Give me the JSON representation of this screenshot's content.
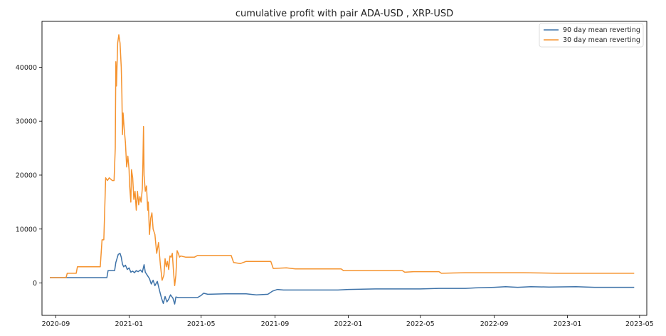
{
  "chart_data": {
    "type": "line",
    "title": "cumulative profit with pair ADA-USD , XRP-USD",
    "xlabel": "",
    "ylabel": "",
    "xlim": [
      "2020-08-09",
      "2023-05-13"
    ],
    "ylim": [
      -6000,
      48500
    ],
    "x_ticks": [
      "2020-09",
      "2021-01",
      "2021-05",
      "2021-09",
      "2022-01",
      "2022-05",
      "2022-09",
      "2023-01",
      "2023-05"
    ],
    "y_ticks": [
      0,
      10000,
      20000,
      30000,
      40000
    ],
    "grid": false,
    "legend_position": "top-right",
    "series": [
      {
        "name": "90 day mean reverting",
        "color": "#3d72a8",
        "points": [
          [
            "2020-08-22",
            1000
          ],
          [
            "2020-11-01",
            1000
          ],
          [
            "2020-11-25",
            1000
          ],
          [
            "2020-11-27",
            2300
          ],
          [
            "2020-12-08",
            2300
          ],
          [
            "2020-12-10",
            3800
          ],
          [
            "2020-12-14",
            5300
          ],
          [
            "2020-12-17",
            5500
          ],
          [
            "2020-12-19",
            4800
          ],
          [
            "2020-12-21",
            3500
          ],
          [
            "2020-12-23",
            3000
          ],
          [
            "2020-12-26",
            3300
          ],
          [
            "2020-12-29",
            2500
          ],
          [
            "2021-01-01",
            2800
          ],
          [
            "2021-01-04",
            2000
          ],
          [
            "2021-01-07",
            2200
          ],
          [
            "2021-01-10",
            1900
          ],
          [
            "2021-01-13",
            2300
          ],
          [
            "2021-01-16",
            2100
          ],
          [
            "2021-01-20",
            2400
          ],
          [
            "2021-01-23",
            2000
          ],
          [
            "2021-01-26",
            3400
          ],
          [
            "2021-01-28",
            2000
          ],
          [
            "2021-01-31",
            1500
          ],
          [
            "2021-02-04",
            800
          ],
          [
            "2021-02-07",
            -200
          ],
          [
            "2021-02-10",
            500
          ],
          [
            "2021-02-13",
            -500
          ],
          [
            "2021-02-17",
            300
          ],
          [
            "2021-02-21",
            -1500
          ],
          [
            "2021-02-24",
            -2800
          ],
          [
            "2021-02-27",
            -3800
          ],
          [
            "2021-03-02",
            -2500
          ],
          [
            "2021-03-05",
            -3500
          ],
          [
            "2021-03-08",
            -3000
          ],
          [
            "2021-03-11",
            -2200
          ],
          [
            "2021-03-15",
            -2800
          ],
          [
            "2021-03-18",
            -3900
          ],
          [
            "2021-03-20",
            -2600
          ],
          [
            "2021-03-24",
            -2700
          ],
          [
            "2021-04-10",
            -2700
          ],
          [
            "2021-04-25",
            -2700
          ],
          [
            "2021-05-01",
            -2300
          ],
          [
            "2021-05-05",
            -1900
          ],
          [
            "2021-05-12",
            -2100
          ],
          [
            "2021-06-10",
            -2000
          ],
          [
            "2021-07-15",
            -2000
          ],
          [
            "2021-08-01",
            -2200
          ],
          [
            "2021-08-20",
            -2100
          ],
          [
            "2021-08-28",
            -1500
          ],
          [
            "2021-09-05",
            -1200
          ],
          [
            "2021-09-15",
            -1300
          ],
          [
            "2021-10-15",
            -1300
          ],
          [
            "2021-12-15",
            -1300
          ],
          [
            "2022-01-01",
            -1200
          ],
          [
            "2022-02-15",
            -1100
          ],
          [
            "2022-03-15",
            -1100
          ],
          [
            "2022-05-01",
            -1100
          ],
          [
            "2022-06-01",
            -1000
          ],
          [
            "2022-07-15",
            -1000
          ],
          [
            "2022-08-01",
            -900
          ],
          [
            "2022-09-01",
            -800
          ],
          [
            "2022-09-20",
            -700
          ],
          [
            "2022-10-10",
            -800
          ],
          [
            "2022-11-01",
            -700
          ],
          [
            "2022-12-01",
            -750
          ],
          [
            "2023-01-15",
            -700
          ],
          [
            "2023-02-15",
            -800
          ],
          [
            "2023-04-22",
            -800
          ]
        ]
      },
      {
        "name": "30 day mean reverting",
        "color": "#f5932f",
        "points": [
          [
            "2020-08-22",
            1000
          ],
          [
            "2020-09-18",
            1000
          ],
          [
            "2020-09-20",
            1800
          ],
          [
            "2020-10-05",
            1800
          ],
          [
            "2020-10-07",
            3000
          ],
          [
            "2020-11-01",
            3000
          ],
          [
            "2020-11-14",
            3000
          ],
          [
            "2020-11-17",
            8000
          ],
          [
            "2020-11-20",
            8000
          ],
          [
            "2020-11-23",
            19500
          ],
          [
            "2020-11-26",
            19000
          ],
          [
            "2020-11-29",
            19500
          ],
          [
            "2020-12-04",
            19000
          ],
          [
            "2020-12-07",
            19000
          ],
          [
            "2020-12-09",
            25000
          ],
          [
            "2020-12-10",
            41000
          ],
          [
            "2020-12-11",
            36500
          ],
          [
            "2020-12-13",
            44500
          ],
          [
            "2020-12-15",
            46000
          ],
          [
            "2020-12-17",
            44500
          ],
          [
            "2020-12-19",
            40000
          ],
          [
            "2020-12-20",
            35000
          ],
          [
            "2020-12-21",
            27500
          ],
          [
            "2020-12-22",
            31500
          ],
          [
            "2020-12-24",
            28500
          ],
          [
            "2020-12-26",
            26000
          ],
          [
            "2020-12-28",
            21500
          ],
          [
            "2020-12-30",
            23500
          ],
          [
            "2021-01-01",
            21000
          ],
          [
            "2021-01-02",
            18000
          ],
          [
            "2021-01-04",
            15000
          ],
          [
            "2021-01-05",
            21000
          ],
          [
            "2021-01-07",
            19500
          ],
          [
            "2021-01-09",
            15500
          ],
          [
            "2021-01-11",
            17000
          ],
          [
            "2021-01-13",
            13500
          ],
          [
            "2021-01-15",
            17000
          ],
          [
            "2021-01-17",
            14500
          ],
          [
            "2021-01-19",
            16000
          ],
          [
            "2021-01-21",
            15000
          ],
          [
            "2021-01-23",
            17500
          ],
          [
            "2021-01-24",
            22000
          ],
          [
            "2021-01-25",
            29000
          ],
          [
            "2021-01-26",
            20000
          ],
          [
            "2021-01-28",
            17000
          ],
          [
            "2021-01-30",
            18000
          ],
          [
            "2021-02-01",
            13500
          ],
          [
            "2021-02-02",
            15000
          ],
          [
            "2021-02-04",
            9000
          ],
          [
            "2021-02-06",
            12000
          ],
          [
            "2021-02-08",
            13000
          ],
          [
            "2021-02-10",
            10000
          ],
          [
            "2021-02-13",
            9000
          ],
          [
            "2021-02-16",
            5500
          ],
          [
            "2021-02-19",
            7500
          ],
          [
            "2021-02-22",
            3500
          ],
          [
            "2021-02-25",
            500
          ],
          [
            "2021-02-28",
            1500
          ],
          [
            "2021-03-02",
            4500
          ],
          [
            "2021-03-04",
            3000
          ],
          [
            "2021-03-06",
            4000
          ],
          [
            "2021-03-08",
            2500
          ],
          [
            "2021-03-10",
            5000
          ],
          [
            "2021-03-12",
            4800
          ],
          [
            "2021-03-14",
            5500
          ],
          [
            "2021-03-16",
            2000
          ],
          [
            "2021-03-18",
            -500
          ],
          [
            "2021-03-20",
            1500
          ],
          [
            "2021-03-22",
            6000
          ],
          [
            "2021-03-24",
            5500
          ],
          [
            "2021-03-26",
            4800
          ],
          [
            "2021-03-28",
            5000
          ],
          [
            "2021-04-05",
            4800
          ],
          [
            "2021-04-20",
            4800
          ],
          [
            "2021-04-25",
            5100
          ],
          [
            "2021-06-01",
            5100
          ],
          [
            "2021-06-20",
            5100
          ],
          [
            "2021-06-24",
            3800
          ],
          [
            "2021-07-05",
            3600
          ],
          [
            "2021-07-15",
            4000
          ],
          [
            "2021-08-25",
            4000
          ],
          [
            "2021-08-29",
            2700
          ],
          [
            "2021-09-20",
            2800
          ],
          [
            "2021-10-05",
            2600
          ],
          [
            "2021-12-20",
            2600
          ],
          [
            "2021-12-24",
            2300
          ],
          [
            "2022-04-01",
            2300
          ],
          [
            "2022-04-05",
            2000
          ],
          [
            "2022-04-20",
            2100
          ],
          [
            "2022-06-01",
            2100
          ],
          [
            "2022-06-05",
            1800
          ],
          [
            "2022-07-15",
            1900
          ],
          [
            "2022-10-20",
            1900
          ],
          [
            "2022-12-15",
            1800
          ],
          [
            "2023-04-22",
            1800
          ]
        ]
      }
    ]
  }
}
